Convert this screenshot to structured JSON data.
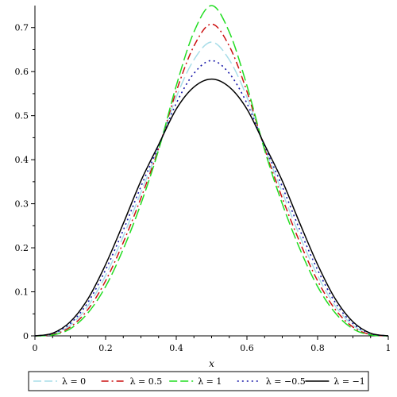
{
  "chart_data": {
    "type": "line",
    "title": "",
    "xlabel": "x",
    "ylabel": "",
    "xlim": [
      0,
      1
    ],
    "ylim": [
      0,
      0.75
    ],
    "xticks": [
      "0",
      "0.2",
      "0.4",
      "0.6",
      "0.8",
      "1"
    ],
    "yticks": [
      "0",
      "0.1",
      "0.2",
      "0.3",
      "0.4",
      "0.5",
      "0.6",
      "0.7"
    ],
    "grid": false,
    "legend_position": "bottom",
    "x": [
      0,
      0.05,
      0.1,
      0.15,
      0.2,
      0.25,
      0.3,
      0.35,
      0.4,
      0.45,
      0.5,
      0.55,
      0.6,
      0.65,
      0.7,
      0.75,
      0.8,
      0.85,
      0.9,
      0.95,
      1
    ],
    "series": [
      {
        "name": "λ = 0",
        "color": "#a8dde8",
        "dash": "long-dash",
        "values": [
          0,
          0.004,
          0.024,
          0.068,
          0.137,
          0.226,
          0.326,
          0.428,
          0.542,
          0.627,
          0.667,
          0.627,
          0.542,
          0.428,
          0.326,
          0.226,
          0.137,
          0.068,
          0.024,
          0.004,
          0
        ]
      },
      {
        "name": "λ = 0.5",
        "color": "#cc1111",
        "dash": "dash-dot",
        "values": [
          0,
          0.003,
          0.02,
          0.06,
          0.125,
          0.212,
          0.313,
          0.425,
          0.555,
          0.658,
          0.708,
          0.658,
          0.555,
          0.425,
          0.313,
          0.212,
          0.125,
          0.06,
          0.02,
          0.003,
          0
        ]
      },
      {
        "name": "λ = 1",
        "color": "#22dd22",
        "dash": "long-dash",
        "values": [
          0,
          0.002,
          0.016,
          0.052,
          0.112,
          0.197,
          0.3,
          0.422,
          0.568,
          0.69,
          0.75,
          0.69,
          0.568,
          0.422,
          0.3,
          0.197,
          0.112,
          0.052,
          0.016,
          0.002,
          0
        ]
      },
      {
        "name": "λ = −0.5",
        "color": "#1a1aaa",
        "dash": "dot",
        "values": [
          0,
          0.005,
          0.028,
          0.076,
          0.15,
          0.24,
          0.339,
          0.431,
          0.528,
          0.596,
          0.625,
          0.596,
          0.528,
          0.431,
          0.339,
          0.24,
          0.15,
          0.076,
          0.028,
          0.005,
          0
        ]
      },
      {
        "name": "λ = −1",
        "color": "#000000",
        "dash": "solid",
        "values": [
          0,
          0.006,
          0.032,
          0.084,
          0.162,
          0.255,
          0.352,
          0.434,
          0.515,
          0.565,
          0.583,
          0.565,
          0.515,
          0.434,
          0.352,
          0.255,
          0.162,
          0.084,
          0.032,
          0.006,
          0
        ]
      }
    ]
  }
}
